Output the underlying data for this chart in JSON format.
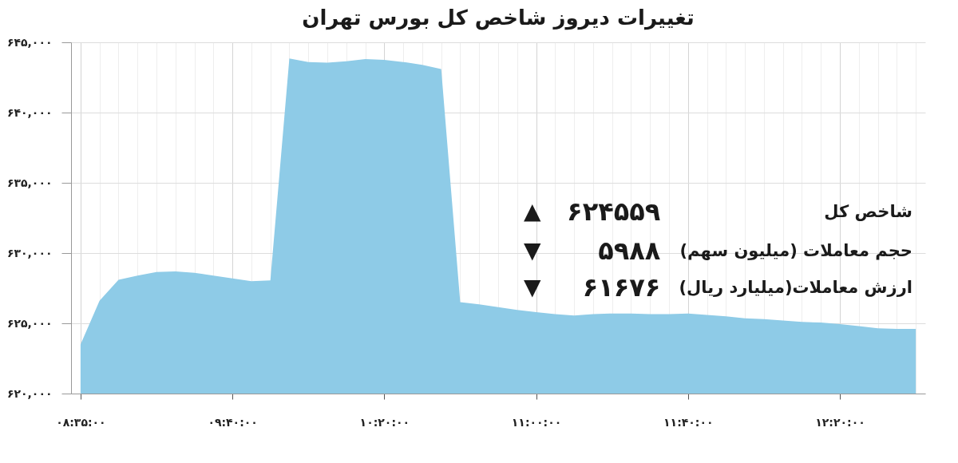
{
  "chart_data": {
    "type": "area",
    "title": "تغییرات دیروز شاخص کل بورس تهران",
    "categories": [
      "۰۸:۳۵:۰۰",
      null,
      null,
      null,
      null,
      null,
      null,
      null,
      "۰۹:۴۰:۰۰",
      null,
      null,
      null,
      null,
      null,
      null,
      null,
      "۱۰:۲۰:۰۰",
      null,
      null,
      null,
      null,
      null,
      null,
      null,
      "۱۱:۰۰:۰۰",
      null,
      null,
      null,
      null,
      null,
      null,
      null,
      "۱۱:۴۰:۰۰",
      null,
      null,
      null,
      null,
      null,
      null,
      null,
      "۱۲:۲۰:۰۰",
      null,
      null,
      null,
      null
    ],
    "series": [
      {
        "color": "#8ecbe7",
        "values": [
          623500,
          626600,
          628100,
          628400,
          628650,
          628700,
          628600,
          628400,
          628200,
          628000,
          628050,
          643850,
          643600,
          643550,
          643650,
          643800,
          643750,
          643600,
          643400,
          643100,
          626500,
          626350,
          626150,
          625950,
          625800,
          625650,
          625550,
          625650,
          625700,
          625700,
          625650,
          625650,
          625700,
          625600,
          625500,
          625350,
          625300,
          625200,
          625100,
          625050,
          624950,
          624800,
          624650,
          624600,
          624600
        ]
      }
    ],
    "ylim": [
      620000,
      645000
    ],
    "yticks": [
      {
        "value": 620000,
        "label": "۶۲۰,۰۰۰"
      },
      {
        "value": 625000,
        "label": "۶۲۵,۰۰۰"
      },
      {
        "value": 630000,
        "label": "۶۳۰,۰۰۰"
      },
      {
        "value": 635000,
        "label": "۶۳۵,۰۰۰"
      },
      {
        "value": 640000,
        "label": "۶۴۰,۰۰۰"
      },
      {
        "value": 645000,
        "label": "۶۴۵,۰۰۰"
      }
    ],
    "grid": true,
    "annotations": [
      "شاخص کل",
      "۶۲۴۵۵۹",
      "▲",
      "حجم معاملات (میلیون سهم)",
      "۵۹۸۸",
      "▼",
      "ارزش معاملات(میلیارد ریال)",
      "۶۱۶۷۶",
      "▼"
    ]
  }
}
